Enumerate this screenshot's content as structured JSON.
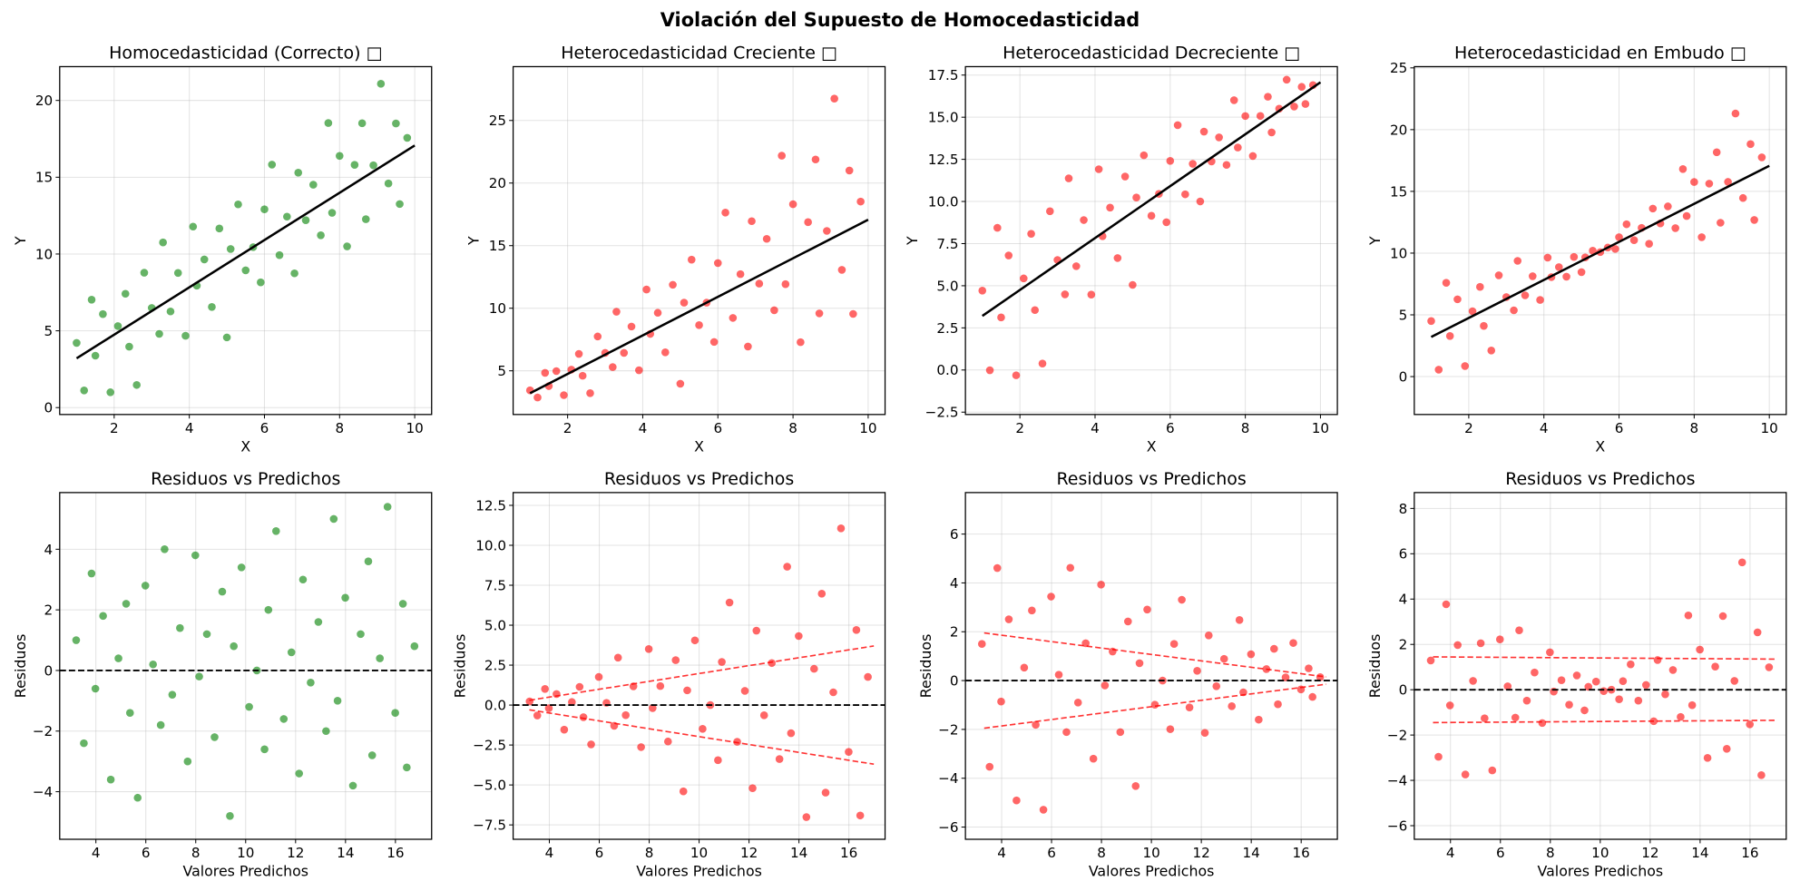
{
  "suptitle": "Violación del Supuesto de Homocedasticidad",
  "chart_data": {
    "type": "scatter",
    "note_on_derivation": "Top panels plot Y = fit_line.intercept + fit_line.slope*X + residual; bottom panels plot residual vs predicted",
    "fit_line": {
      "intercept": 1.67,
      "slope": 1.54,
      "x_range": [
        1,
        10
      ]
    },
    "x": [
      1.0,
      1.2,
      1.4,
      1.5,
      1.7,
      1.9,
      2.1,
      2.3,
      2.4,
      2.6,
      2.8,
      3.0,
      3.2,
      3.3,
      3.5,
      3.7,
      3.9,
      4.1,
      4.2,
      4.4,
      4.6,
      4.8,
      5.0,
      5.1,
      5.3,
      5.5,
      5.7,
      5.9,
      6.0,
      6.2,
      6.4,
      6.6,
      6.8,
      6.9,
      7.1,
      7.3,
      7.5,
      7.7,
      7.8,
      8.0,
      8.2,
      8.4,
      8.6,
      8.7,
      8.9,
      9.1,
      9.3,
      9.5,
      9.6,
      9.8
    ],
    "top_xlabel": "X",
    "top_ylabel": "Y",
    "top_xlim": [
      0.55,
      10.45
    ],
    "top_xticks": [
      2,
      4,
      6,
      8,
      10
    ],
    "bottom_title": "Residuos vs Predichos",
    "bottom_xlabel": "Valores Predichos",
    "bottom_ylabel": "Residuos",
    "bottom_xlim": [
      2.55,
      17.45
    ],
    "bottom_xticks": [
      4,
      6,
      8,
      10,
      12,
      14,
      16
    ],
    "grid": true,
    "panels": [
      {
        "title": "Homocedasticidad (Correcto) □",
        "color": "#008000",
        "top_ylim": [
          -0.45,
          22.2
        ],
        "top_yticks": [
          0,
          5,
          10,
          15,
          20
        ],
        "top_ytick_labels": [
          "0",
          "5",
          "10",
          "15",
          "20"
        ],
        "bottom_ylim": [
          -5.57,
          5.87
        ],
        "bottom_yticks": [
          -4,
          -2,
          0,
          2,
          4
        ],
        "bottom_ytick_labels": [
          "−4",
          "−2",
          "0",
          "2",
          "4"
        ],
        "envelope": null,
        "residuals": [
          1.0,
          -2.4,
          3.2,
          -0.6,
          1.8,
          -3.6,
          0.4,
          2.2,
          -1.4,
          -4.2,
          2.8,
          0.2,
          -1.8,
          4.0,
          -0.8,
          1.4,
          -3.0,
          3.8,
          -0.2,
          1.2,
          -2.2,
          2.6,
          -4.8,
          0.8,
          3.4,
          -1.2,
          0.0,
          -2.6,
          2.0,
          4.6,
          -1.6,
          0.6,
          -3.4,
          3.0,
          -0.4,
          1.6,
          -2.0,
          5.0,
          -1.0,
          2.4,
          -3.8,
          1.2,
          3.6,
          -2.8,
          0.4,
          5.4,
          -1.4,
          2.2,
          -3.2,
          0.8
        ]
      },
      {
        "title": "Heterocedasticidad Creciente □",
        "color": "#ff0000",
        "top_ylim": [
          1.51,
          29.3
        ],
        "top_yticks": [
          5,
          10,
          15,
          20,
          25
        ],
        "top_ytick_labels": [
          "5",
          "10",
          "15",
          "20",
          "25"
        ],
        "bottom_ylim": [
          -8.4,
          13.3
        ],
        "bottom_yticks": [
          -7.5,
          -5,
          -2.5,
          0,
          2.5,
          5,
          7.5,
          10,
          12.5
        ],
        "bottom_ytick_labels": [
          "−7.5",
          "−5.0",
          "−2.5",
          "0.0",
          "2.5",
          "5.0",
          "7.5",
          "10.0",
          "12.5"
        ],
        "envelope": {
          "upper": [
            [
              3.2,
              0.3
            ],
            [
              17,
              3.7
            ]
          ],
          "lower": [
            [
              3.2,
              -0.3
            ],
            [
              17,
              -3.7
            ]
          ]
        },
        "residuals": [
          0.23,
          -0.65,
          1.01,
          -0.2,
          0.69,
          -1.54,
          0.19,
          1.14,
          -0.76,
          -2.46,
          1.76,
          0.14,
          -1.3,
          2.97,
          -0.63,
          1.17,
          -2.63,
          3.51,
          -0.19,
          1.19,
          -2.28,
          2.81,
          -5.4,
          0.92,
          4.05,
          -1.49,
          0.0,
          -3.45,
          2.7,
          6.42,
          -2.3,
          0.89,
          -5.2,
          4.66,
          -0.64,
          2.63,
          -3.38,
          8.66,
          -1.76,
          4.32,
          -7.01,
          2.27,
          6.97,
          -5.48,
          0.8,
          11.06,
          -2.93,
          4.7,
          -6.91,
          1.76
        ]
      },
      {
        "title": "Heterocedasticidad Decreciente □",
        "color": "#ff0000",
        "top_ylim": [
          -2.64,
          18.0
        ],
        "top_yticks": [
          -2.5,
          0,
          2.5,
          5,
          7.5,
          10,
          12.5,
          15,
          17.5
        ],
        "top_ytick_labels": [
          "−2.5",
          "0.0",
          "2.5",
          "5.0",
          "7.5",
          "10.0",
          "12.5",
          "15.0",
          "17.5"
        ],
        "bottom_ylim": [
          -6.5,
          7.7
        ],
        "bottom_yticks": [
          -6,
          -4,
          -2,
          0,
          2,
          4,
          6
        ],
        "bottom_ytick_labels": [
          "−6",
          "−4",
          "−2",
          "0",
          "2",
          "4",
          "6"
        ],
        "envelope": {
          "upper": [
            [
              3.3,
              1.95
            ],
            [
              17,
              0.15
            ]
          ],
          "lower": [
            [
              3.3,
              -1.95
            ],
            [
              17,
              -0.15
            ]
          ]
        },
        "residuals": [
          1.5,
          -3.53,
          4.61,
          -0.86,
          2.51,
          -4.91,
          0.53,
          2.87,
          -1.81,
          -5.29,
          3.44,
          0.24,
          -2.11,
          4.62,
          -0.9,
          1.53,
          -3.2,
          3.93,
          -0.2,
          1.19,
          -2.11,
          2.42,
          -4.32,
          0.71,
          2.91,
          -0.99,
          0.0,
          -1.99,
          1.5,
          3.31,
          -1.1,
          0.4,
          -2.14,
          1.85,
          -0.23,
          0.89,
          -1.05,
          2.48,
          -0.48,
          1.08,
          -1.6,
          0.47,
          1.3,
          -0.97,
          0.13,
          1.54,
          -0.36,
          0.5,
          -0.67,
          0.14
        ]
      },
      {
        "title": "Heterocedasticidad en Embudo □",
        "color": "#ff0000",
        "top_ylim": [
          -3.07,
          25.1
        ],
        "top_yticks": [
          0,
          5,
          10,
          15,
          20,
          25
        ],
        "top_ytick_labels": [
          "0",
          "5",
          "10",
          "15",
          "20",
          "25"
        ],
        "bottom_ylim": [
          -6.6,
          8.7
        ],
        "bottom_yticks": [
          -6,
          -4,
          -2,
          0,
          2,
          4,
          6,
          8
        ],
        "bottom_ytick_labels": [
          "−6",
          "−4",
          "−2",
          "0",
          "2",
          "4",
          "6",
          "8"
        ],
        "envelope": {
          "upper": [
            [
              3.3,
              1.45
            ],
            [
              17,
              1.35
            ]
          ],
          "lower": [
            [
              3.3,
              -1.45
            ],
            [
              17,
              -1.35
            ]
          ]
        },
        "residuals": [
          1.29,
          -2.96,
          3.77,
          -0.69,
          1.97,
          -3.74,
          0.39,
          2.05,
          -1.26,
          -3.56,
          2.22,
          0.15,
          -1.23,
          2.62,
          -0.48,
          0.76,
          -1.47,
          1.65,
          -0.08,
          0.42,
          -0.66,
          0.63,
          -0.91,
          0.13,
          0.36,
          -0.06,
          0.0,
          -0.42,
          0.38,
          1.12,
          -0.48,
          0.21,
          -1.39,
          1.31,
          -0.2,
          0.87,
          -1.2,
          3.28,
          -0.68,
          1.77,
          -3.01,
          1.02,
          3.25,
          -2.61,
          0.39,
          5.62,
          -1.53,
          2.53,
          -3.77,
          0.99
        ]
      }
    ]
  }
}
